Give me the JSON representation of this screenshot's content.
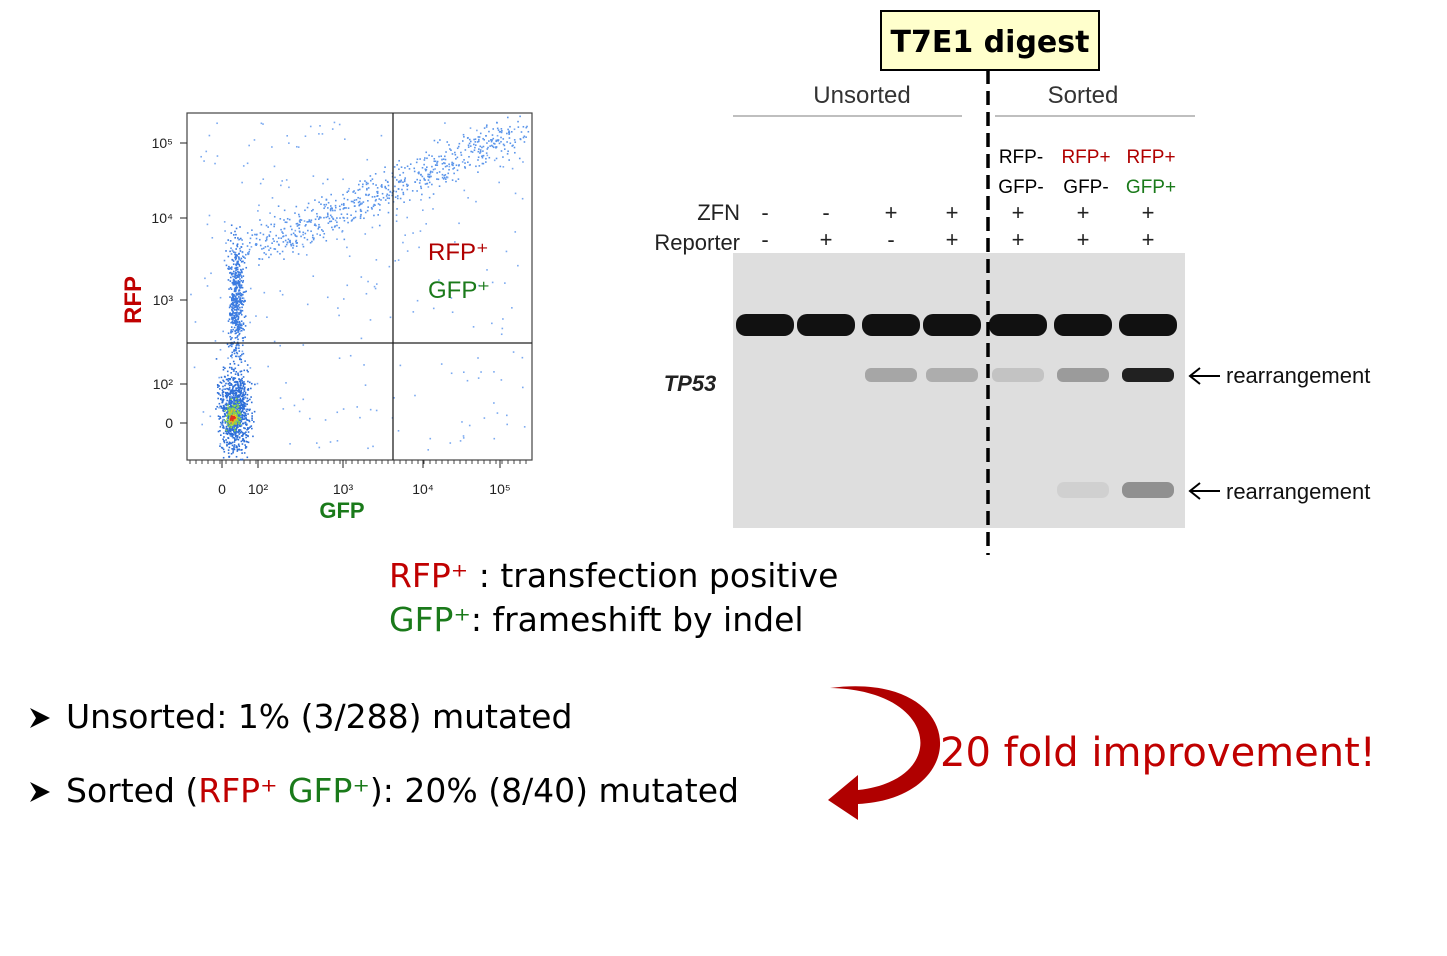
{
  "flow_plot": {
    "y_label": "RFP",
    "x_label": "GFP",
    "y_ticks": [
      "10⁵",
      "10⁴",
      "10³",
      "10²",
      "0"
    ],
    "x_ticks": [
      "0",
      "10²",
      "10³",
      "10⁴",
      "10⁵"
    ],
    "quadrant_label_1": "RFP⁺",
    "quadrant_label_2": "GFP⁺"
  },
  "gel": {
    "header": "T7E1 digest",
    "groups": [
      "Unsorted",
      "Sorted"
    ],
    "row_labels": [
      "ZFN",
      "Reporter"
    ],
    "lanes": [
      {
        "zfn": "-",
        "reporter": "-"
      },
      {
        "zfn": "-",
        "reporter": "+"
      },
      {
        "zfn": "+",
        "reporter": "-"
      },
      {
        "zfn": "+",
        "reporter": "+"
      },
      {
        "rfp": "RFP-",
        "gfp": "GFP-",
        "zfn": "+",
        "reporter": "+"
      },
      {
        "rfp": "RFP+",
        "gfp": "GFP-",
        "zfn": "+",
        "reporter": "+"
      },
      {
        "rfp": "RFP+",
        "gfp": "GFP+",
        "zfn": "+",
        "reporter": "+"
      }
    ],
    "gene": "TP53",
    "annotations": [
      "rearrangement",
      "rearrangement"
    ]
  },
  "legend": [
    {
      "key": "RFP⁺",
      "text": " : transfection positive"
    },
    {
      "key": "GFP⁺",
      "text": ": frameshift by indel"
    }
  ],
  "bullets": [
    {
      "text": "Unsorted: 1% (3/288) mutated"
    },
    {
      "pre": "Sorted (",
      "key1": "RFP⁺",
      "key2": " GFP⁺",
      "post": "): 20% (8/40) mutated"
    }
  ],
  "conclusion": "20 fold improvement!"
}
